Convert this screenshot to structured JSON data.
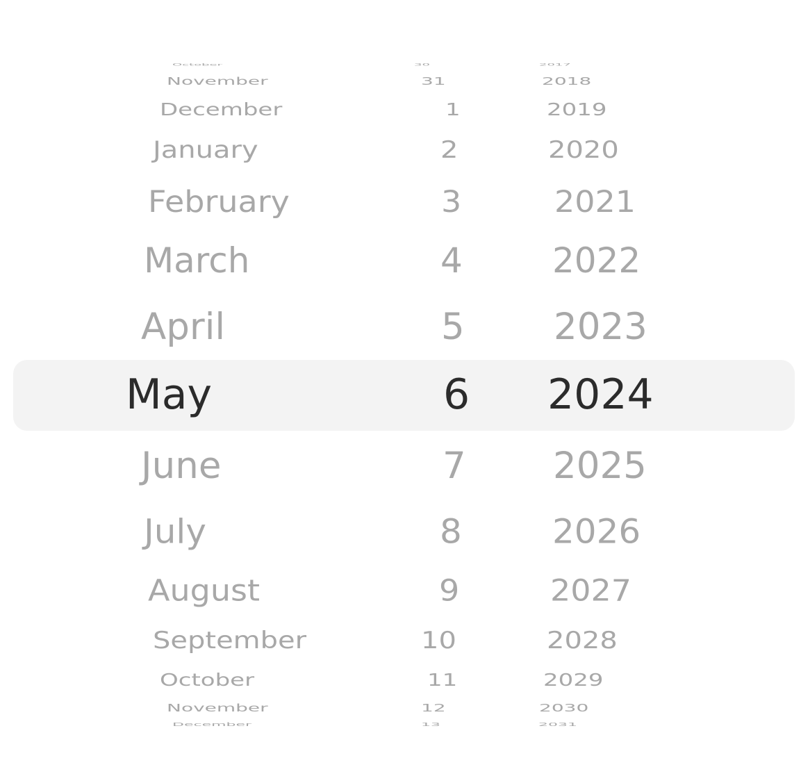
{
  "picker": {
    "selected": {
      "month": "May",
      "day": "6",
      "year": "2024"
    },
    "rows": [
      {
        "month": "October",
        "day": "30",
        "year": "2017"
      },
      {
        "month": "November",
        "day": "31",
        "year": "2018"
      },
      {
        "month": "December",
        "day": "1",
        "year": "2019"
      },
      {
        "month": "January",
        "day": "2",
        "year": "2020"
      },
      {
        "month": "February",
        "day": "3",
        "year": "2021"
      },
      {
        "month": "March",
        "day": "4",
        "year": "2022"
      },
      {
        "month": "April",
        "day": "5",
        "year": "2023"
      },
      {
        "month": "May",
        "day": "6",
        "year": "2024"
      },
      {
        "month": "June",
        "day": "7",
        "year": "2025"
      },
      {
        "month": "July",
        "day": "8",
        "year": "2026"
      },
      {
        "month": "August",
        "day": "9",
        "year": "2027"
      },
      {
        "month": "September",
        "day": "10",
        "year": "2028"
      },
      {
        "month": "October",
        "day": "11",
        "year": "2029"
      },
      {
        "month": "November",
        "day": "12",
        "year": "2030"
      },
      {
        "month": "December",
        "day": "13",
        "year": "2031"
      }
    ],
    "colors": {
      "selected_text": "#2b2b2b",
      "unselected_text": "#a8a8a8",
      "selection_band": "#f3f3f3",
      "background": "#ffffff"
    }
  }
}
